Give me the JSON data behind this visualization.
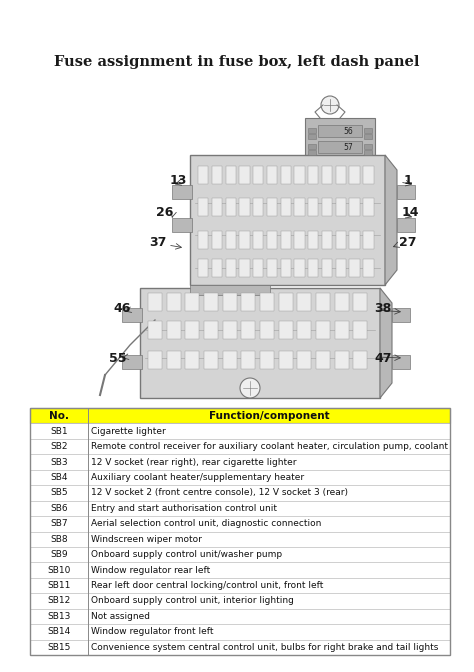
{
  "title": "Fuse assignment in fuse box, left dash panel",
  "title_fontsize": 10.5,
  "bg_color": "#ffffff",
  "table_header": [
    "No.",
    "Function/component"
  ],
  "header_bg": "#ffff00",
  "header_fontsize": 7.5,
  "row_fontsize": 6.5,
  "table_rows": [
    [
      "SB1",
      "Cigarette lighter"
    ],
    [
      "SB2",
      "Remote control receiver for auxiliary coolant heater, circulation pump, coolant"
    ],
    [
      "SB3",
      "12 V socket (rear right), rear cigarette lighter"
    ],
    [
      "SB4",
      "Auxiliary coolant heater/supplementary heater"
    ],
    [
      "SB5",
      "12 V socket 2 (front centre console), 12 V socket 3 (rear)"
    ],
    [
      "SB6",
      "Entry and start authorisation control unit"
    ],
    [
      "SB7",
      "Aerial selection control unit, diagnostic connection"
    ],
    [
      "SB8",
      "Windscreen wiper motor"
    ],
    [
      "SB9",
      "Onboard supply control unit/washer pump"
    ],
    [
      "SB10",
      "Window regulator rear left"
    ],
    [
      "SB11",
      "Rear left door central locking/control unit, front left"
    ],
    [
      "SB12",
      "Onboard supply control unit, interior lighting"
    ],
    [
      "SB13",
      "Not assigned"
    ],
    [
      "SB14",
      "Window regulator front left"
    ],
    [
      "SB15",
      "Convenience system central control unit, bulbs for right brake and tail lights"
    ]
  ],
  "outline_color": "#777777",
  "fill_light": "#d4d4d4",
  "fill_mid": "#b8b8b8",
  "fuse_color": "#ececec",
  "fuse_dark": "#cccccc"
}
